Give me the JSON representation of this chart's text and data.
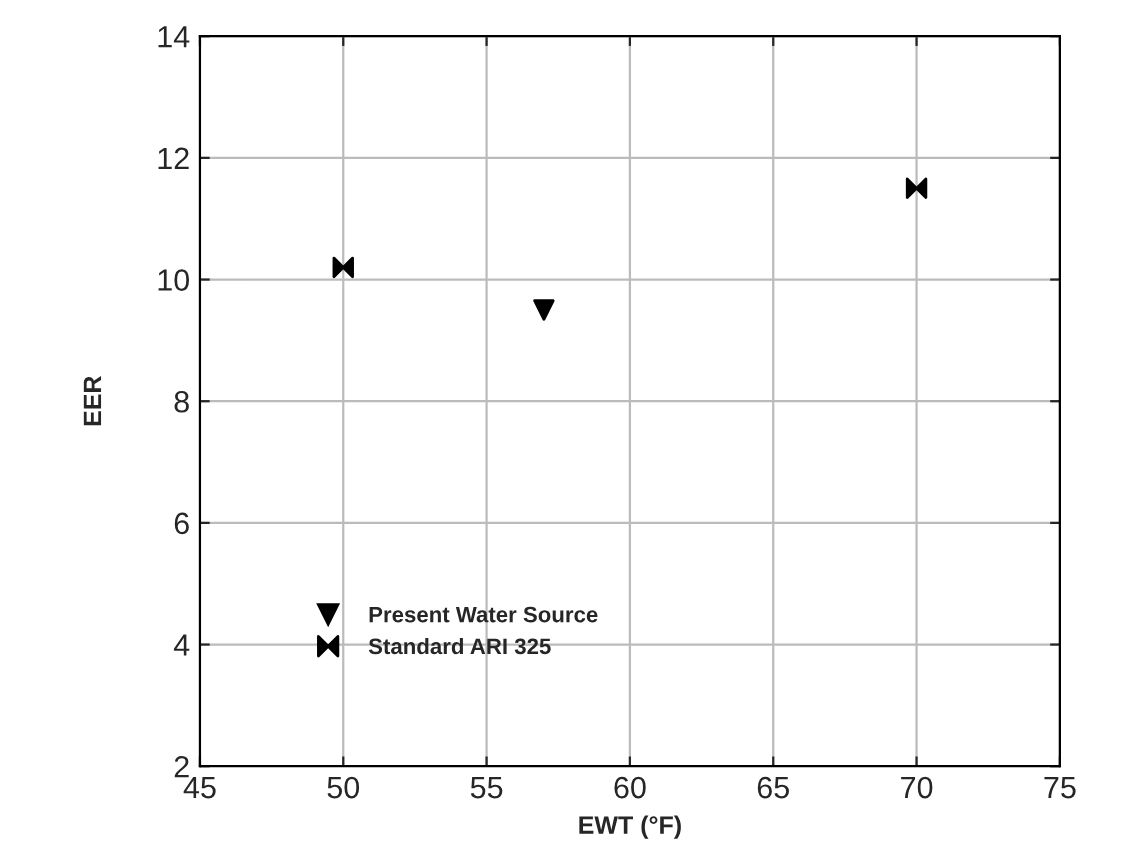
{
  "chart_data": {
    "type": "scatter",
    "xlabel": "EWT (°F)",
    "ylabel": "EER",
    "series": [
      {
        "name": "Present Water Source",
        "color": "#000000",
        "marker": "triangle",
        "x": [
          57
        ],
        "values": [
          9.5
        ]
      },
      {
        "name": "Standard ARI 325",
        "color": "#000000",
        "x": [
          50,
          70
        ],
        "values": [
          10.2,
          11.5
        ]
      }
    ],
    "xlim": [
      45,
      75
    ],
    "xticks": [
      45,
      50,
      55,
      60,
      65,
      70,
      75
    ],
    "ylim": [
      2,
      14
    ],
    "yticks": [
      2,
      4,
      6,
      8,
      10,
      12,
      14
    ],
    "grid": true,
    "legend": "bottom left"
  }
}
